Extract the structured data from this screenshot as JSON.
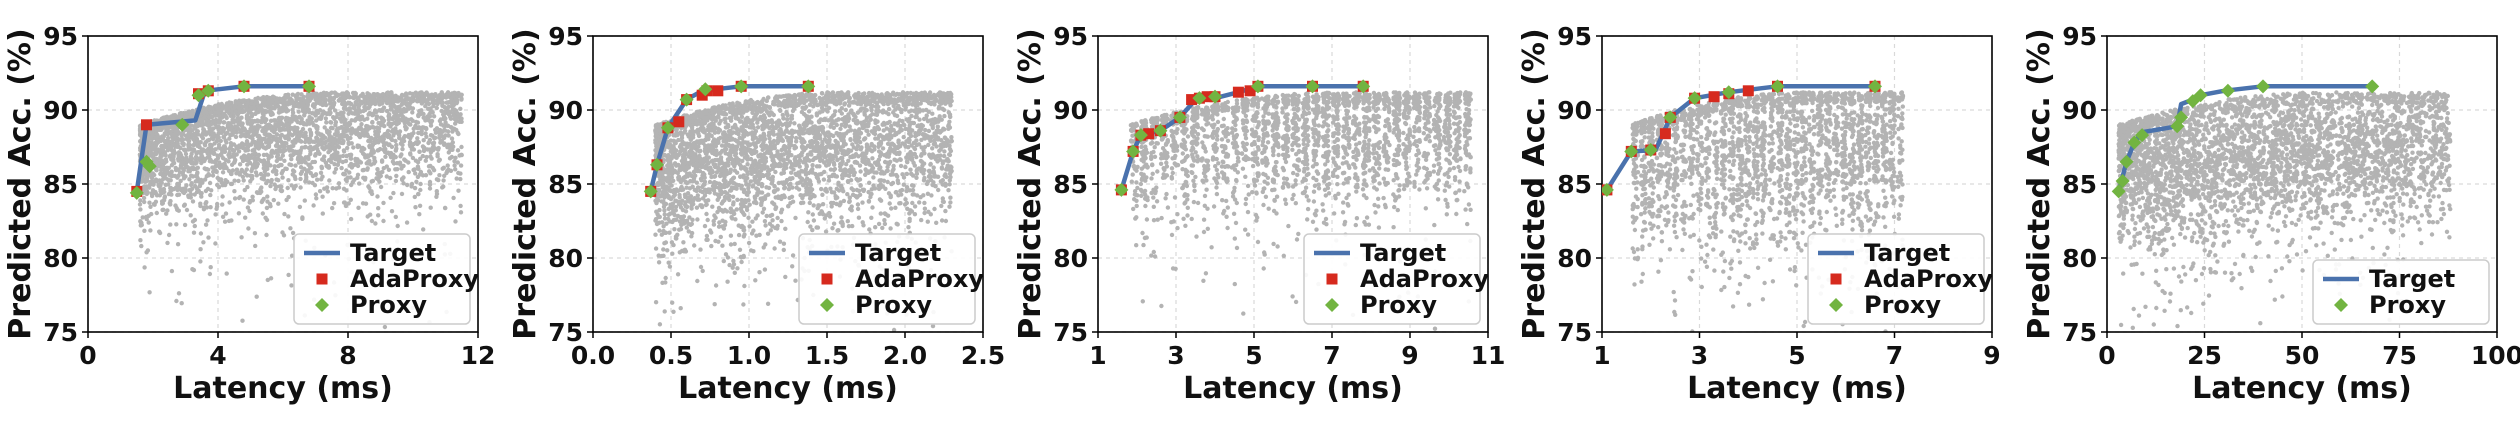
{
  "figure": {
    "background": "#ffffff"
  },
  "colors": {
    "target": "#4a72ad",
    "adaproxy": "#d62a1e",
    "proxy": "#72b441",
    "scatter": "#b3b3b3",
    "grid": "#d9d9d9"
  },
  "chart_data": [
    {
      "type": "scatter",
      "xlabel": "Latency (ms)",
      "ylabel": "Predicted Acc. (%)",
      "xlim": [
        0,
        12
      ],
      "ylim": [
        75,
        95
      ],
      "xticks": [
        0,
        4,
        8,
        12
      ],
      "xtick_labels": [
        "0",
        "4",
        "8",
        "12"
      ],
      "yticks": [
        75,
        80,
        85,
        90,
        95
      ],
      "ytick_labels": [
        "75",
        "80",
        "85",
        "90",
        "95"
      ],
      "grid": true,
      "legend": {
        "position": "lower-right",
        "entries": [
          "Target",
          "AdaProxy",
          "Proxy"
        ]
      },
      "background_cloud": {
        "x_range": [
          1.6,
          11.5
        ],
        "y_center": 88.5,
        "spread": 3.2,
        "density": "high"
      },
      "series": [
        {
          "name": "Target",
          "kind": "line",
          "x": [
            1.5,
            1.8,
            3.3,
            3.6,
            4.8,
            6.8
          ],
          "y": [
            84.5,
            89.0,
            89.3,
            91.3,
            91.6,
            91.6
          ]
        },
        {
          "name": "AdaProxy",
          "kind": "marker",
          "x": [
            1.5,
            1.8,
            3.4,
            3.7,
            4.8,
            6.8
          ],
          "y": [
            84.5,
            89.0,
            91.1,
            91.3,
            91.6,
            91.6
          ]
        },
        {
          "name": "Proxy",
          "kind": "marker",
          "x": [
            1.5,
            1.8,
            1.9,
            2.9,
            3.4,
            3.7,
            4.8,
            6.8
          ],
          "y": [
            84.4,
            86.5,
            86.2,
            89.0,
            91.0,
            91.3,
            91.6,
            91.6
          ]
        }
      ]
    },
    {
      "type": "scatter",
      "xlabel": "Latency (ms)",
      "ylabel": "Predicted Acc. (%)",
      "xlim": [
        0,
        2.5
      ],
      "ylim": [
        75,
        95
      ],
      "xticks": [
        0,
        0.5,
        1.0,
        1.5,
        2.0,
        2.5
      ],
      "xtick_labels": [
        "0.0",
        "0.5",
        "1.0",
        "1.5",
        "2.0",
        "2.5"
      ],
      "yticks": [
        75,
        80,
        85,
        90,
        95
      ],
      "ytick_labels": [
        "75",
        "80",
        "85",
        "90",
        "95"
      ],
      "grid": true,
      "legend": {
        "position": "lower-right",
        "entries": [
          "Target",
          "AdaProxy",
          "Proxy"
        ]
      },
      "background_cloud": {
        "x_range": [
          0.4,
          2.3
        ],
        "y_center": 87.5,
        "spread": 3.8,
        "density": "high"
      },
      "series": [
        {
          "name": "Target",
          "kind": "line",
          "x": [
            0.37,
            0.41,
            0.48,
            0.6,
            0.7,
            0.95,
            1.38
          ],
          "y": [
            84.5,
            86.3,
            88.8,
            90.7,
            91.3,
            91.6,
            91.6
          ]
        },
        {
          "name": "AdaProxy",
          "kind": "marker",
          "x": [
            0.37,
            0.41,
            0.48,
            0.55,
            0.6,
            0.7,
            0.73,
            0.8,
            0.95,
            1.38
          ],
          "y": [
            84.5,
            86.3,
            88.8,
            89.2,
            90.7,
            91.0,
            91.3,
            91.3,
            91.6,
            91.6
          ]
        },
        {
          "name": "Proxy",
          "kind": "marker",
          "x": [
            0.37,
            0.41,
            0.48,
            0.6,
            0.72,
            0.95,
            1.38
          ],
          "y": [
            84.5,
            86.3,
            88.8,
            90.7,
            91.4,
            91.6,
            91.6
          ]
        }
      ]
    },
    {
      "type": "scatter",
      "xlabel": "Latency (ms)",
      "ylabel": "Predicted Acc. (%)",
      "xlim": [
        1,
        11
      ],
      "ylim": [
        75,
        95
      ],
      "xticks": [
        1,
        3,
        5,
        7,
        9,
        11
      ],
      "xtick_labels": [
        "1",
        "3",
        "5",
        "7",
        "9",
        "11"
      ],
      "yticks": [
        75,
        80,
        85,
        90,
        95
      ],
      "ytick_labels": [
        "75",
        "80",
        "85",
        "90",
        "95"
      ],
      "grid": true,
      "legend": {
        "position": "lower-right",
        "entries": [
          "Target",
          "AdaProxy",
          "Proxy"
        ]
      },
      "background_cloud": {
        "x_range": [
          1.8,
          10.6
        ],
        "y_center": 88.5,
        "spread": 3.5,
        "density": "columns"
      },
      "series": [
        {
          "name": "Target",
          "kind": "line",
          "x": [
            1.6,
            1.9,
            2.1,
            2.6,
            3.1,
            3.5,
            4.0,
            4.6,
            5.1,
            6.5,
            7.8
          ],
          "y": [
            84.6,
            87.2,
            88.3,
            88.6,
            89.5,
            90.7,
            90.8,
            91.2,
            91.6,
            91.6,
            91.6
          ]
        },
        {
          "name": "AdaProxy",
          "kind": "marker",
          "x": [
            1.6,
            1.9,
            2.1,
            2.3,
            2.6,
            3.1,
            3.4,
            3.6,
            3.8,
            4.0,
            4.6,
            4.9,
            5.1,
            6.5,
            7.8
          ],
          "y": [
            84.6,
            87.2,
            88.3,
            88.4,
            88.6,
            89.5,
            90.7,
            90.8,
            90.9,
            90.9,
            91.2,
            91.3,
            91.6,
            91.6,
            91.6
          ]
        },
        {
          "name": "Proxy",
          "kind": "marker",
          "x": [
            1.6,
            1.9,
            2.1,
            2.6,
            3.1,
            3.6,
            4.0,
            5.1,
            6.5,
            7.8
          ],
          "y": [
            84.6,
            87.2,
            88.3,
            88.6,
            89.5,
            90.8,
            90.9,
            91.6,
            91.6,
            91.6
          ]
        }
      ]
    },
    {
      "type": "scatter",
      "xlabel": "Latency (ms)",
      "ylabel": "Predicted Acc. (%)",
      "xlim": [
        1,
        9
      ],
      "ylim": [
        75,
        95
      ],
      "xticks": [
        1,
        3,
        5,
        7,
        9
      ],
      "xtick_labels": [
        "1",
        "3",
        "5",
        "7",
        "9"
      ],
      "yticks": [
        75,
        80,
        85,
        90,
        95
      ],
      "ytick_labels": [
        "75",
        "80",
        "85",
        "90",
        "95"
      ],
      "grid": true,
      "legend": {
        "position": "lower-right",
        "entries": [
          "Target",
          "AdaProxy",
          "Proxy"
        ]
      },
      "background_cloud": {
        "x_range": [
          1.6,
          7.2
        ],
        "y_center": 87.5,
        "spread": 4.5,
        "density": "columns"
      },
      "series": [
        {
          "name": "Target",
          "kind": "line",
          "x": [
            1.1,
            1.6,
            2.1,
            2.4,
            2.9,
            3.6,
            4.6,
            6.6
          ],
          "y": [
            84.6,
            87.2,
            87.3,
            89.5,
            90.8,
            91.2,
            91.6,
            91.6
          ]
        },
        {
          "name": "AdaProxy",
          "kind": "marker",
          "x": [
            1.1,
            1.6,
            2.0,
            2.3,
            2.4,
            2.9,
            3.3,
            3.6,
            4.0,
            4.6,
            6.6
          ],
          "y": [
            84.6,
            87.2,
            87.3,
            88.4,
            89.5,
            90.8,
            90.9,
            91.1,
            91.3,
            91.6,
            91.6
          ]
        },
        {
          "name": "Proxy",
          "kind": "marker",
          "x": [
            1.1,
            1.6,
            2.0,
            2.4,
            2.9,
            3.6,
            4.6,
            6.6
          ],
          "y": [
            84.6,
            87.2,
            87.3,
            89.5,
            90.8,
            91.2,
            91.6,
            91.6
          ]
        }
      ]
    },
    {
      "type": "scatter",
      "xlabel": "Latency (ms)",
      "ylabel": "Predicted Acc. (%)",
      "xlim": [
        0,
        100
      ],
      "ylim": [
        75,
        95
      ],
      "xticks": [
        0,
        25,
        50,
        75,
        100
      ],
      "xtick_labels": [
        "0",
        "25",
        "50",
        "75",
        "100"
      ],
      "yticks": [
        75,
        80,
        85,
        90,
        95
      ],
      "ytick_labels": [
        "75",
        "80",
        "85",
        "90",
        "95"
      ],
      "grid": true,
      "legend": {
        "position": "lower-right",
        "entries": [
          "Target",
          "Proxy"
        ]
      },
      "background_cloud": {
        "x_range": [
          3,
          88
        ],
        "y_center": 87.0,
        "spread": 3.5,
        "density": "high"
      },
      "series": [
        {
          "name": "Target",
          "kind": "line",
          "x": [
            3,
            5,
            7,
            9,
            18,
            19,
            21,
            24,
            30,
            40,
            68
          ],
          "y": [
            84.5,
            86.5,
            87.8,
            88.5,
            88.9,
            90.4,
            90.6,
            91.0,
            91.3,
            91.6,
            91.6
          ]
        },
        {
          "name": "Proxy",
          "kind": "marker",
          "x": [
            3,
            4,
            5,
            7,
            9,
            18,
            19,
            22,
            24,
            31,
            40,
            68
          ],
          "y": [
            84.5,
            85.2,
            86.5,
            87.8,
            88.3,
            88.9,
            89.5,
            90.6,
            91.0,
            91.3,
            91.6,
            91.6
          ]
        }
      ]
    }
  ]
}
